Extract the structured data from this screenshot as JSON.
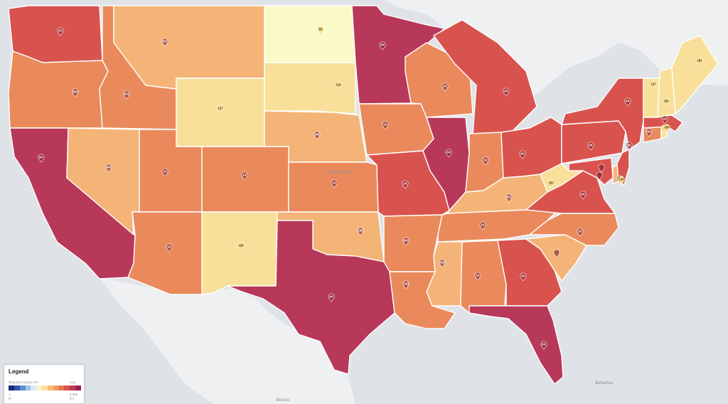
{
  "map": {
    "country_label": "United States",
    "mexico_label": "Mexico",
    "bahamas_label": "Bahamas"
  },
  "legend": {
    "title": "Legend",
    "subtitle": "Reported Unique IPs",
    "aggregation": "Avg.",
    "min": "1",
    "max": "8,050",
    "min_sub": "IP",
    "max_sub": "IPs",
    "colors": [
      "#1b2a7a",
      "#2f55a8",
      "#5b8fcf",
      "#9cc3e4",
      "#d6e8f2",
      "#f6f3c9",
      "#f8e09a",
      "#f7bb72",
      "#f29a5f",
      "#ea7451",
      "#d9534e",
      "#be3a55",
      "#9e1f4f"
    ]
  },
  "states": [
    {
      "id": "WA",
      "label": "2K",
      "color": "#d9534e"
    },
    {
      "id": "OR",
      "label": "900",
      "color": "#ea8a5c"
    },
    {
      "id": "CA",
      "label": "8K",
      "color": "#b8385a"
    },
    {
      "id": "ID",
      "label": "602",
      "color": "#ea8a5c"
    },
    {
      "id": "NV",
      "label": "460",
      "color": "#f4b477"
    },
    {
      "id": "MT",
      "label": "437",
      "color": "#f4b477"
    },
    {
      "id": "WY",
      "label": "127",
      "color": "#f8e09a"
    },
    {
      "id": "UT",
      "label": "1K",
      "color": "#ea8a5c"
    },
    {
      "id": "AZ",
      "label": "1K",
      "color": "#ea8a5c"
    },
    {
      "id": "CO",
      "label": "1K",
      "color": "#ea8a5c"
    },
    {
      "id": "NM",
      "label": "194",
      "color": "#f8e09a"
    },
    {
      "id": "ND",
      "label": "84",
      "color": "#fafac8"
    },
    {
      "id": "SD",
      "label": "116",
      "color": "#f8e09a"
    },
    {
      "id": "NE",
      "label": "305",
      "color": "#f4b477"
    },
    {
      "id": "KS",
      "label": "1K",
      "color": "#ea8a5c"
    },
    {
      "id": "OK",
      "label": "296",
      "color": "#f4b477"
    },
    {
      "id": "TX",
      "label": "6K",
      "color": "#b8385a"
    },
    {
      "id": "MN",
      "label": "6K",
      "color": "#b8385a"
    },
    {
      "id": "IA",
      "label": "1K",
      "color": "#ea8a5c"
    },
    {
      "id": "MO",
      "label": "2K",
      "color": "#d9534e"
    },
    {
      "id": "AR",
      "label": "901",
      "color": "#ea8a5c"
    },
    {
      "id": "LA",
      "label": "339",
      "color": "#ea8a5c"
    },
    {
      "id": "WI",
      "label": "1K",
      "color": "#ea8a5c"
    },
    {
      "id": "IL",
      "label": "6K",
      "color": "#b8385a"
    },
    {
      "id": "MI",
      "label": "4K",
      "color": "#d9534e"
    },
    {
      "id": "IN",
      "label": "1K",
      "color": "#ea8a5c"
    },
    {
      "id": "OH",
      "label": "4K",
      "color": "#d9534e"
    },
    {
      "id": "KY",
      "label": "601",
      "color": "#f4b477"
    },
    {
      "id": "TN",
      "label": "1K",
      "color": "#ea8a5c"
    },
    {
      "id": "MS",
      "label": "303",
      "color": "#f4b477"
    },
    {
      "id": "AL",
      "label": "1K",
      "color": "#ea8a5c"
    },
    {
      "id": "GA",
      "label": "3K",
      "color": "#d9534e"
    },
    {
      "id": "FL",
      "label": "6K",
      "color": "#b8385a"
    },
    {
      "id": "SC",
      "label": "",
      "color": "#f4b477"
    },
    {
      "id": "NC",
      "label": "2K",
      "color": "#ea8a5c"
    },
    {
      "id": "VA",
      "label": "2K",
      "color": "#d9534e"
    },
    {
      "id": "WV",
      "label": "250",
      "color": "#f8e09a"
    },
    {
      "id": "PA",
      "label": "3K",
      "color": "#d9534e"
    },
    {
      "id": "NY",
      "label": "4K",
      "color": "#d9534e"
    },
    {
      "id": "MD",
      "label": "",
      "color": "#d9534e"
    },
    {
      "id": "DE",
      "label": "",
      "color": "#f4b477"
    },
    {
      "id": "NJ",
      "label": "3K",
      "color": "#d9534e"
    },
    {
      "id": "CT",
      "label": "561",
      "color": "#ea8a5c"
    },
    {
      "id": "RI",
      "label": "",
      "color": "#f8e09a"
    },
    {
      "id": "MA",
      "label": "2K",
      "color": "#d9534e"
    },
    {
      "id": "VT",
      "label": "127",
      "color": "#f8e09a"
    },
    {
      "id": "NH",
      "label": "205",
      "color": "#f8e09a"
    },
    {
      "id": "ME",
      "label": "181",
      "color": "#f8e09a"
    }
  ],
  "extra_pins": [
    {
      "id": "DC",
      "label": "",
      "color": "#f4b477"
    },
    {
      "id": "DE2",
      "label": "158",
      "color": "#f8e09a"
    },
    {
      "id": "MD2",
      "label": "356",
      "color": "#f8e09a"
    }
  ]
}
